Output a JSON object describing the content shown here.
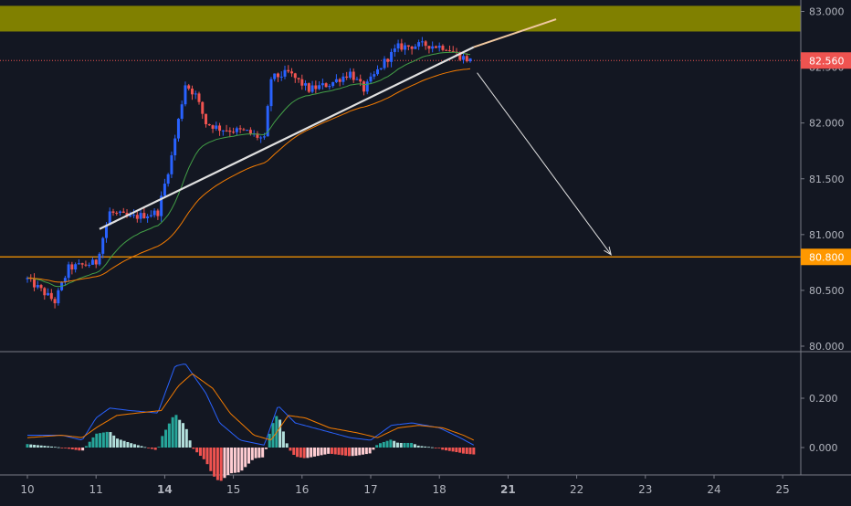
{
  "colors": {
    "background": "#131722",
    "axis_text": "#b2b5be",
    "axis_line": "#787b86",
    "up": "#2962ff",
    "down": "#ef5350",
    "ema_fast": "#43a047",
    "ema_slow": "#f57c00",
    "resistance_zone": "#808000",
    "trendline": "#e0e0e0",
    "level_line": "#ff9800",
    "current_price_line": "#ef5350",
    "arrow": "#e0e0e0",
    "macd_line": "#2962ff",
    "signal_line": "#f57c00",
    "hist_pos_strong": "#26a69a",
    "hist_pos_weak": "#b2dfdb",
    "hist_neg_strong": "#ef5350",
    "hist_neg_weak": "#ffcdd2"
  },
  "price_axis": {
    "ticks": [
      "83.000",
      "82.500",
      "82.000",
      "81.500",
      "81.000",
      "80.500",
      "80.000"
    ],
    "current_price_label": "82.560",
    "level_label": "80.800"
  },
  "time_axis": {
    "ticks": [
      {
        "label": "10",
        "bold": false
      },
      {
        "label": "11",
        "bold": false
      },
      {
        "label": "14",
        "bold": true
      },
      {
        "label": "15",
        "bold": false
      },
      {
        "label": "16",
        "bold": false
      },
      {
        "label": "17",
        "bold": false
      },
      {
        "label": "18",
        "bold": false
      },
      {
        "label": "21",
        "bold": true
      },
      {
        "label": "22",
        "bold": false
      },
      {
        "label": "23",
        "bold": false
      },
      {
        "label": "24",
        "bold": false
      },
      {
        "label": "25",
        "bold": false
      }
    ]
  },
  "macd_axis": {
    "ticks": [
      "0.200",
      "0.000"
    ]
  },
  "chart_data": {
    "type": "candlestick",
    "title": "",
    "xlabel": "",
    "ylabel": "",
    "ylim": [
      80.0,
      83.05
    ],
    "x_unit": "session index (tick labels: 10, 11, 14, 15, 16, 17, 18, 21, 22, 23, 24, 25)",
    "x_sessions": [
      "10",
      "11",
      "14",
      "15",
      "16",
      "17",
      "18",
      "21",
      "22",
      "23",
      "24",
      "25"
    ],
    "price_anchors": [
      {
        "x": 0.0,
        "y": 80.6
      },
      {
        "x": 0.4,
        "y": 80.4
      },
      {
        "x": 0.6,
        "y": 80.7
      },
      {
        "x": 1.0,
        "y": 80.75
      },
      {
        "x": 1.2,
        "y": 81.2
      },
      {
        "x": 1.5,
        "y": 81.15
      },
      {
        "x": 1.9,
        "y": 81.2
      },
      {
        "x": 2.1,
        "y": 81.7
      },
      {
        "x": 2.3,
        "y": 82.35
      },
      {
        "x": 2.45,
        "y": 82.25
      },
      {
        "x": 2.6,
        "y": 82.0
      },
      {
        "x": 2.8,
        "y": 81.95
      },
      {
        "x": 3.2,
        "y": 81.92
      },
      {
        "x": 3.45,
        "y": 81.85
      },
      {
        "x": 3.55,
        "y": 82.4
      },
      {
        "x": 3.8,
        "y": 82.45
      },
      {
        "x": 4.1,
        "y": 82.3
      },
      {
        "x": 4.4,
        "y": 82.35
      },
      {
        "x": 4.7,
        "y": 82.45
      },
      {
        "x": 4.9,
        "y": 82.3
      },
      {
        "x": 5.2,
        "y": 82.55
      },
      {
        "x": 5.4,
        "y": 82.68
      },
      {
        "x": 5.8,
        "y": 82.7
      },
      {
        "x": 6.1,
        "y": 82.68
      },
      {
        "x": 6.3,
        "y": 82.6
      },
      {
        "x": 6.45,
        "y": 82.56
      }
    ],
    "candle_count": 130,
    "moving_averages": [
      {
        "color": "#43a047",
        "period": 20
      },
      {
        "color": "#f57c00",
        "period": 50
      }
    ],
    "resistance_zone": {
      "low": 82.82,
      "high": 83.05
    },
    "support_level": 80.8,
    "current_price": 82.56,
    "trendline": {
      "x1": 1.05,
      "y1": 81.05,
      "x2": 6.5,
      "y2": 82.68,
      "extension_x2": 7.7,
      "extension_y2": 82.93
    },
    "projection_arrow": {
      "x1": 6.55,
      "y1": 82.45,
      "x2": 8.5,
      "y2": 80.82
    },
    "macd": {
      "ylim": [
        -0.15,
        0.42
      ],
      "macd_line": [
        [
          0.0,
          0.05
        ],
        [
          0.5,
          0.05
        ],
        [
          0.8,
          0.03
        ],
        [
          1.0,
          0.12
        ],
        [
          1.2,
          0.16
        ],
        [
          1.5,
          0.15
        ],
        [
          1.9,
          0.14
        ],
        [
          2.15,
          0.33
        ],
        [
          2.3,
          0.34
        ],
        [
          2.6,
          0.22
        ],
        [
          2.8,
          0.1
        ],
        [
          3.1,
          0.03
        ],
        [
          3.45,
          0.01
        ],
        [
          3.65,
          0.17
        ],
        [
          3.9,
          0.1
        ],
        [
          4.3,
          0.07
        ],
        [
          4.7,
          0.04
        ],
        [
          5.0,
          0.03
        ],
        [
          5.3,
          0.09
        ],
        [
          5.6,
          0.1
        ],
        [
          6.0,
          0.08
        ],
        [
          6.3,
          0.04
        ],
        [
          6.5,
          0.01
        ]
      ],
      "signal_line": [
        [
          0.0,
          0.04
        ],
        [
          0.5,
          0.05
        ],
        [
          0.8,
          0.04
        ],
        [
          1.0,
          0.08
        ],
        [
          1.3,
          0.13
        ],
        [
          1.6,
          0.14
        ],
        [
          1.95,
          0.15
        ],
        [
          2.2,
          0.25
        ],
        [
          2.4,
          0.3
        ],
        [
          2.7,
          0.24
        ],
        [
          2.95,
          0.14
        ],
        [
          3.3,
          0.05
        ],
        [
          3.55,
          0.03
        ],
        [
          3.8,
          0.13
        ],
        [
          4.05,
          0.12
        ],
        [
          4.4,
          0.08
        ],
        [
          4.8,
          0.06
        ],
        [
          5.1,
          0.04
        ],
        [
          5.4,
          0.08
        ],
        [
          5.7,
          0.09
        ],
        [
          6.05,
          0.08
        ],
        [
          6.35,
          0.05
        ],
        [
          6.5,
          0.03
        ]
      ],
      "histogram_count": 130
    }
  }
}
